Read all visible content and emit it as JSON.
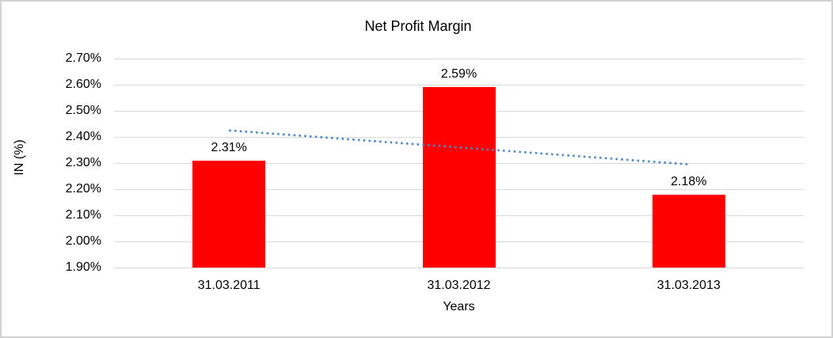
{
  "chart_data": {
    "type": "bar",
    "title": "Net Profit Margin",
    "xlabel": "Years",
    "ylabel": "IN (%)",
    "categories": [
      "31.03.2011",
      "31.03.2012",
      "31.03.2013"
    ],
    "values": [
      2.31,
      2.59,
      2.18
    ],
    "data_labels": [
      "2.31%",
      "2.59%",
      "2.18%"
    ],
    "y_tick_labels": [
      "2.70%",
      "2.60%",
      "2.50%",
      "2.40%",
      "2.30%",
      "2.20%",
      "2.10%",
      "2.00%",
      "1.90%"
    ],
    "y_tick_values": [
      2.7,
      2.6,
      2.5,
      2.4,
      2.3,
      2.2,
      2.1,
      2.0,
      1.9
    ],
    "ylim": [
      1.9,
      2.7
    ],
    "grid": true,
    "legend": "none",
    "colors": {
      "bar": "#ff0000",
      "trendline": "#4e87c7",
      "gridline": "#d9d9d9",
      "text": "#000000",
      "frame_border": "#d2d2d2",
      "background": "#ffffff"
    },
    "trendline": {
      "type": "linear",
      "style": "dotted"
    }
  }
}
